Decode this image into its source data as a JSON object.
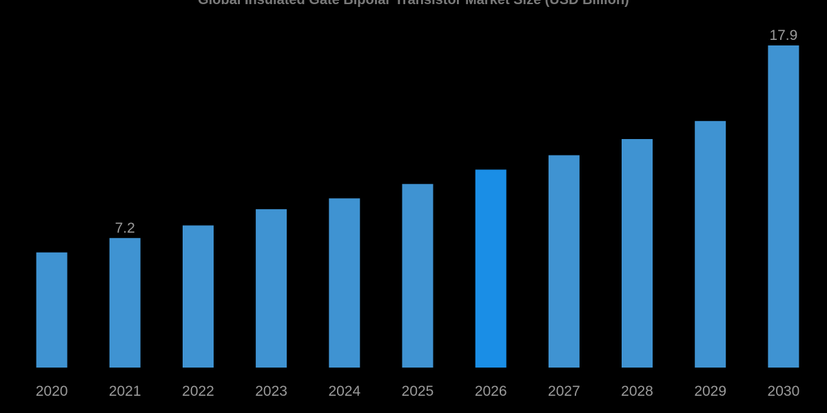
{
  "chart_data": {
    "type": "bar",
    "title": "Global Insulated Gate Bipolar Transistor Market Size (USD Billion)",
    "xlabel": "",
    "ylabel": "",
    "categories": [
      "2020",
      "2021",
      "2022",
      "2023",
      "2024",
      "2025",
      "2026",
      "2027",
      "2028",
      "2029",
      "2030"
    ],
    "values": [
      6.4,
      7.2,
      7.9,
      8.8,
      9.4,
      10.2,
      11.0,
      11.8,
      12.7,
      13.7,
      17.9
    ],
    "data_labels": [
      {
        "category": "2021",
        "text": "7.2"
      },
      {
        "category": "2030",
        "text": "17.9"
      }
    ],
    "highlighted_category": "2026",
    "ylim": [
      0,
      17.9
    ],
    "grid": false,
    "legend": "none",
    "colors": {
      "background": "#000000",
      "bar": "#3f93d2",
      "bar_highlight": "#1a8ee6",
      "text": "#9a9a9a",
      "title": "#7a7a7a"
    }
  }
}
